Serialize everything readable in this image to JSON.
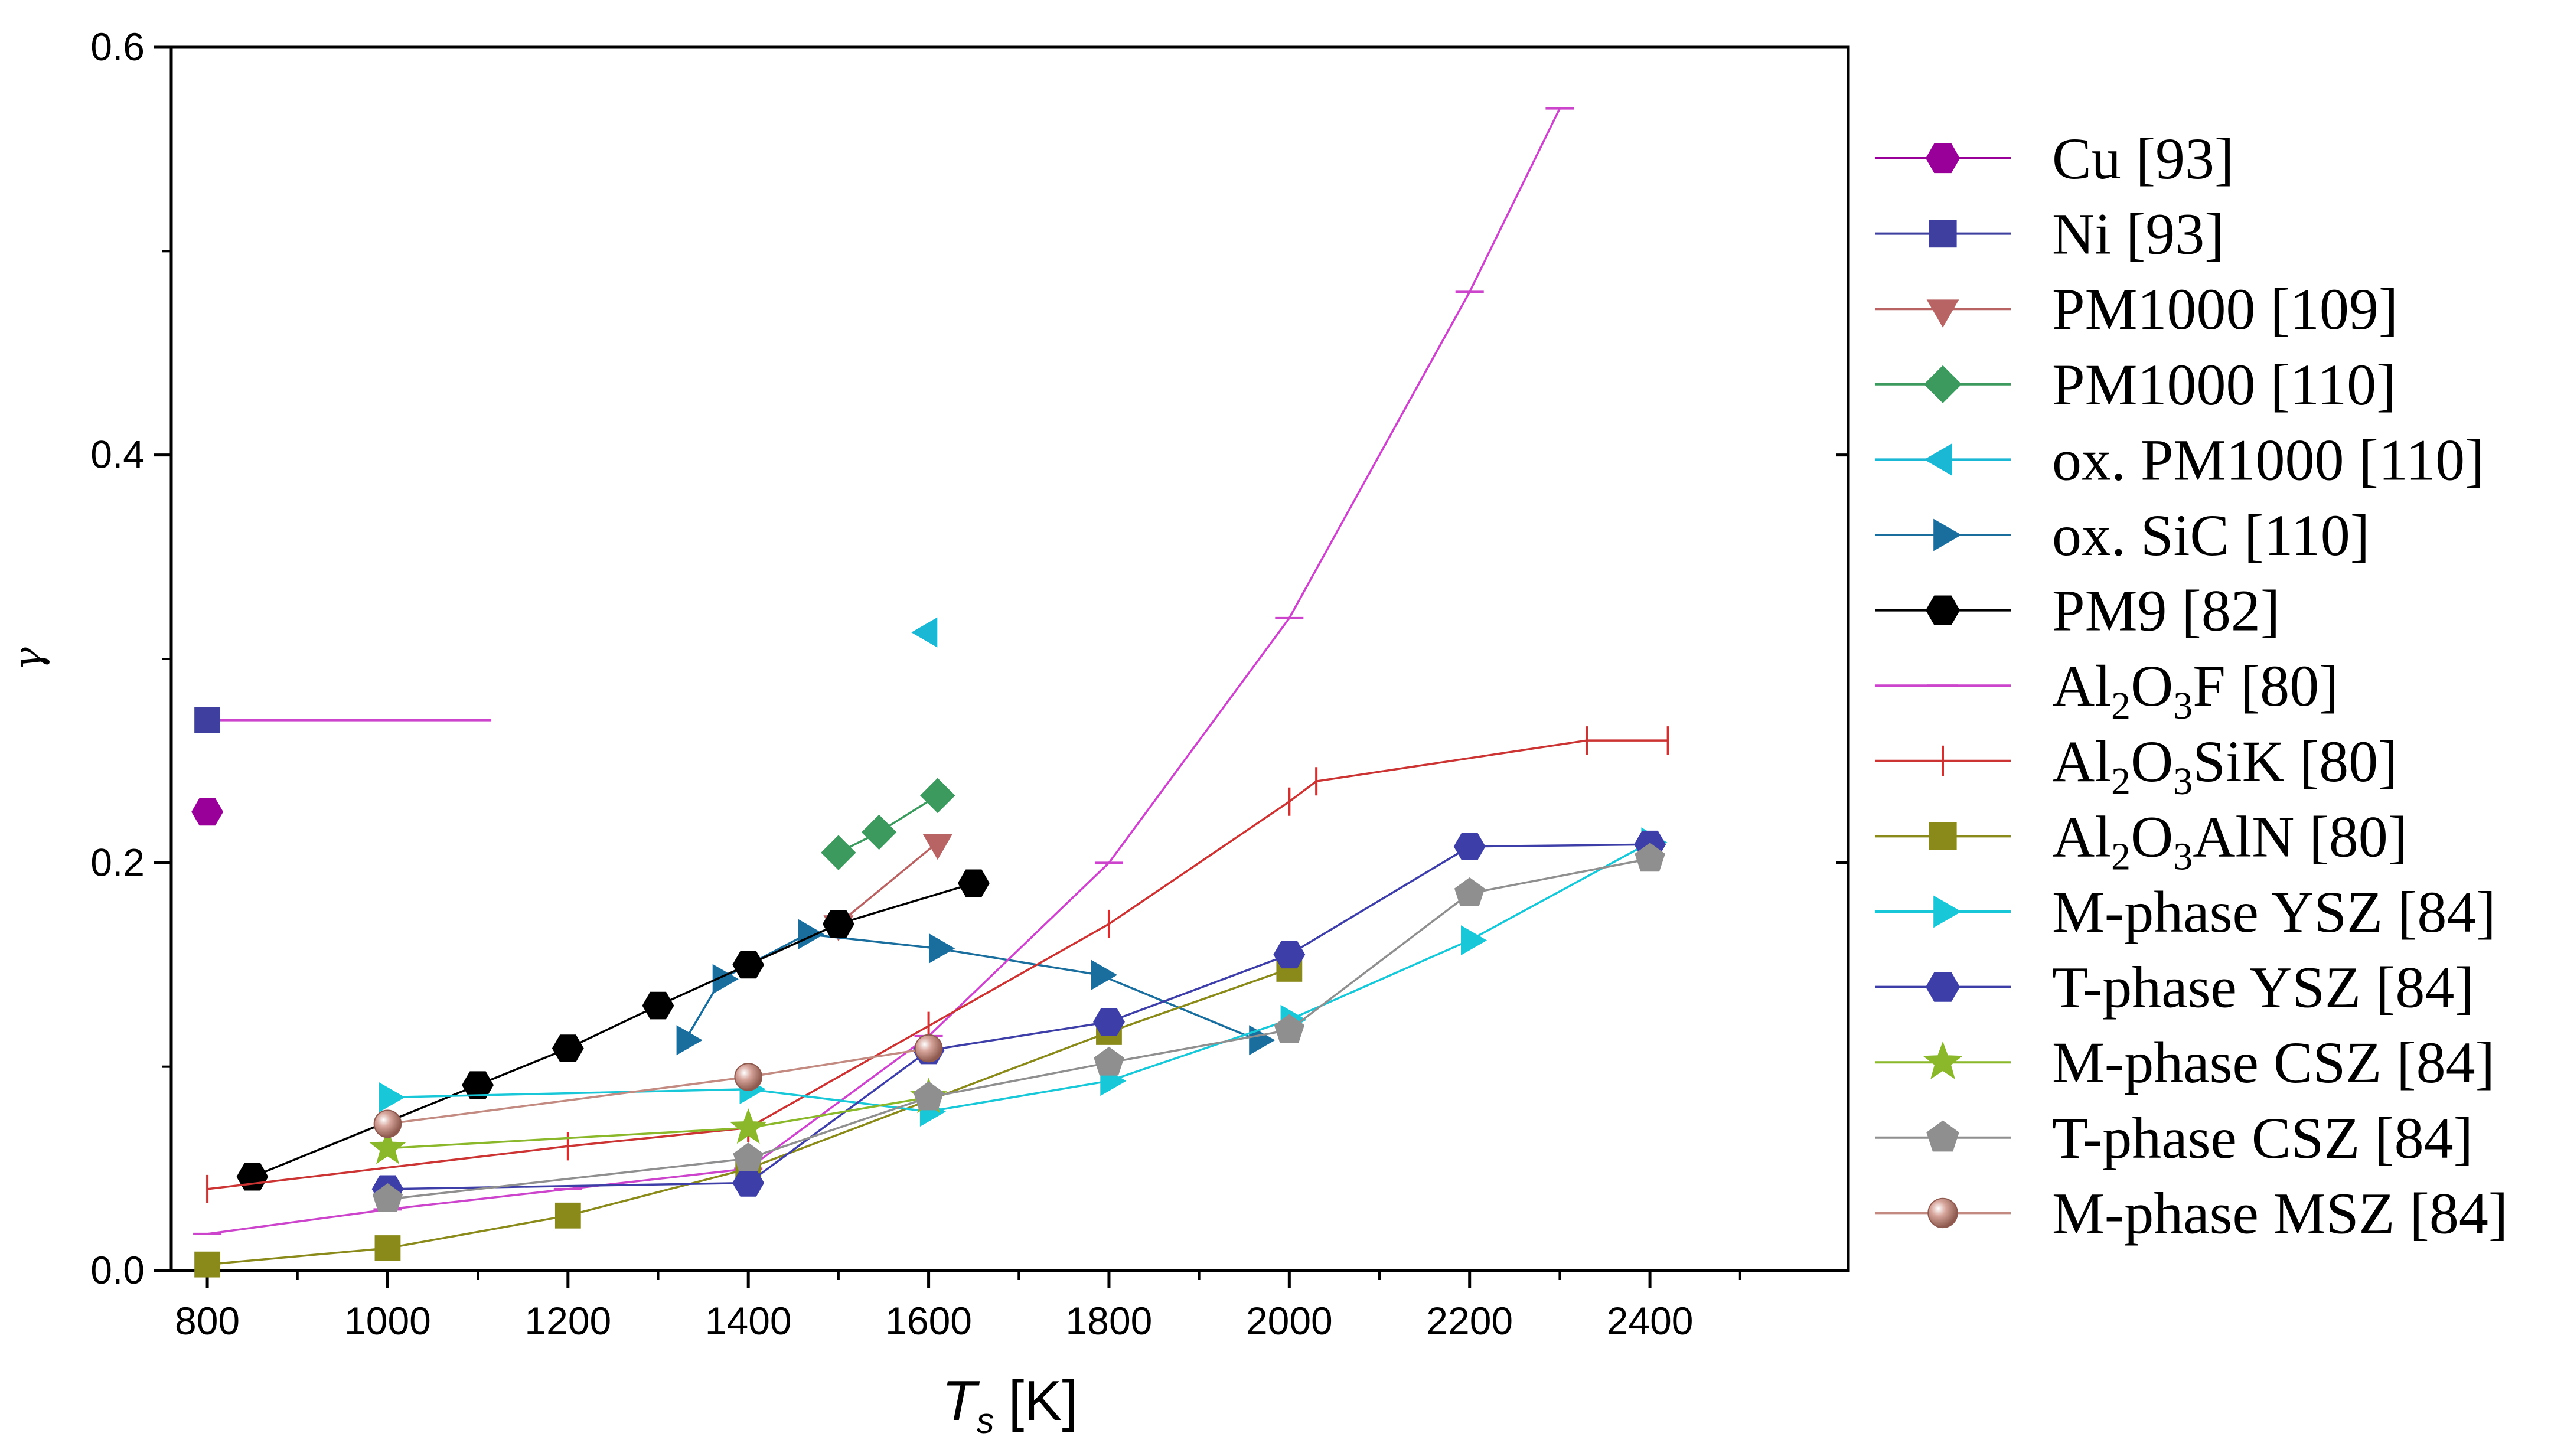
{
  "chart_data": {
    "type": "line",
    "title": "",
    "xlabel": "T",
    "xlabel_sub": "s",
    "xlabel_unit": "[K]",
    "ylabel": "γ",
    "xlim": [
      760,
      2620
    ],
    "ylim": [
      0.0,
      0.6
    ],
    "xticks": [
      "800",
      "1000",
      "1200",
      "1400",
      "1600",
      "1800",
      "2000",
      "2200",
      "2400"
    ],
    "yticks": [
      "0.0",
      "0.2",
      "0.4",
      "0.6"
    ],
    "legend_position": "right",
    "series": [
      {
        "name": "Cu [93]",
        "label_main": "Cu [93]",
        "color": "#990099",
        "marker": "hexagon",
        "line": false,
        "x": [
          800
        ],
        "y": [
          0.225
        ]
      },
      {
        "name": "Ni [93]",
        "label_main": "Ni [93]",
        "color": "#3f3fa0",
        "marker": "square",
        "line": false,
        "x": [
          800
        ],
        "y": [
          0.27
        ]
      },
      {
        "name": "PM1000 [109]",
        "label_main": "PM1000 [109]",
        "color": "#b86464",
        "marker": "triangle-down",
        "line": true,
        "x": [
          1500,
          1610
        ],
        "y": [
          0.17,
          0.21
        ]
      },
      {
        "name": "PM1000 [110]",
        "label_main": "PM1000 [110]",
        "color": "#3c9a5f",
        "marker": "diamond",
        "line": true,
        "x": [
          1500,
          1545,
          1610
        ],
        "y": [
          0.205,
          0.215,
          0.233
        ]
      },
      {
        "name": "ox. PM1000 [110]",
        "label_main": "ox. PM1000 [110]",
        "color": "#1ab8d4",
        "marker": "triangle-left",
        "line": false,
        "x": [
          1600
        ],
        "y": [
          0.313
        ]
      },
      {
        "name": "ox. SiC [110]",
        "label_main": "ox. SiC [110]",
        "color": "#1a6e9e",
        "marker": "triangle-right",
        "line": true,
        "x": [
          1330,
          1370,
          1465,
          1610,
          1790,
          1965
        ],
        "y": [
          0.113,
          0.143,
          0.165,
          0.158,
          0.145,
          0.113
        ]
      },
      {
        "name": "PM9 [82]",
        "label_main": "PM9 [82]",
        "color": "#000000",
        "marker": "hexagon",
        "line": true,
        "x": [
          850,
          1100,
          1200,
          1300,
          1400,
          1500,
          1650
        ],
        "y": [
          0.046,
          0.091,
          0.109,
          0.13,
          0.15,
          0.17,
          0.19
        ]
      },
      {
        "name": "Al2O3F [80]",
        "label_main": "Al",
        "label_sub1": "2",
        "label_mid": "O",
        "label_sub2": "3",
        "label_end": "F [80]",
        "color": "#cc44cc",
        "marker": "hbar",
        "line": true,
        "x": [
          800,
          1000,
          1200,
          1400,
          1600,
          1800,
          2000,
          2200,
          2300
        ],
        "y": [
          0.018,
          0.03,
          0.04,
          0.05,
          0.115,
          0.2,
          0.32,
          0.48,
          0.57
        ]
      },
      {
        "name": "Al2O3SiK [80]",
        "label_main": "Al",
        "label_sub1": "2",
        "label_mid": "O",
        "label_sub2": "3",
        "label_end": "SiK [80]",
        "color": "#cc3333",
        "marker": "vbar",
        "line": true,
        "x": [
          800,
          1200,
          1400,
          1600,
          1800,
          2000,
          2030,
          2330,
          2420
        ],
        "y": [
          0.04,
          0.061,
          0.07,
          0.12,
          0.17,
          0.23,
          0.24,
          0.26,
          0.26
        ]
      },
      {
        "name": "Al2O3AlN [80]",
        "label_main": "Al",
        "label_sub1": "2",
        "label_mid": "O",
        "label_sub2": "3",
        "label_end": "AlN [80]",
        "color": "#8a8a1a",
        "marker": "square",
        "line": true,
        "x": [
          800,
          1000,
          1200,
          1400,
          1800,
          2000
        ],
        "y": [
          0.003,
          0.011,
          0.027,
          0.05,
          0.117,
          0.148
        ]
      },
      {
        "name": "M-phase YSZ [84]",
        "label_main": "M-phase YSZ [84]",
        "color": "#18c8d8",
        "marker": "triangle-right",
        "line": true,
        "x": [
          1000,
          1400,
          1600,
          1800,
          2000,
          2200,
          2400
        ],
        "y": [
          0.085,
          0.089,
          0.078,
          0.093,
          0.123,
          0.162,
          0.21
        ]
      },
      {
        "name": "T-phase YSZ [84]",
        "label_main": "T-phase YSZ [84]",
        "color": "#3e3ea8",
        "marker": "hexagon",
        "line": true,
        "x": [
          1000,
          1400,
          1600,
          1800,
          2000,
          2200,
          2400
        ],
        "y": [
          0.04,
          0.043,
          0.108,
          0.122,
          0.155,
          0.208,
          0.209
        ]
      },
      {
        "name": "M-phase CSZ [84]",
        "label_main": "M-phase CSZ [84]",
        "color": "#8ab82a",
        "marker": "star",
        "line": true,
        "x": [
          1000,
          1400,
          1600
        ],
        "y": [
          0.06,
          0.07,
          0.085
        ]
      },
      {
        "name": "T-phase CSZ [84]",
        "label_main": "T-phase CSZ [84]",
        "color": "#8f8f8f",
        "marker": "pentagon",
        "line": true,
        "x": [
          1000,
          1400,
          1600,
          1800,
          2000,
          2200,
          2400
        ],
        "y": [
          0.035,
          0.055,
          0.085,
          0.102,
          0.118,
          0.185,
          0.202
        ]
      },
      {
        "name": "M-phase MSZ [84]",
        "label_main": "M-phase MSZ [84]",
        "color": "#c28a80",
        "marker": "sphere",
        "line": true,
        "x": [
          1000,
          1400,
          1600
        ],
        "y": [
          0.072,
          0.095,
          0.109
        ]
      }
    ]
  }
}
